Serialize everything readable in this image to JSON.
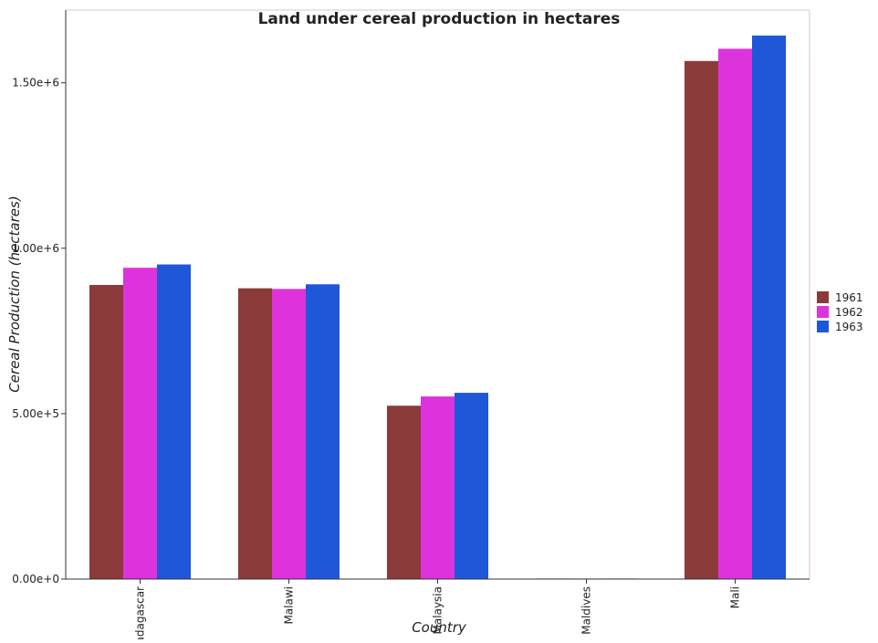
{
  "chart_data": {
    "type": "bar",
    "title": "Land under cereal production in hectares",
    "xlabel": "Country",
    "ylabel": "Cereal Production (hectares)",
    "categories": [
      "Madagascar",
      "Malawi",
      "Malaysia",
      "Maldives",
      "Mali"
    ],
    "series": [
      {
        "name": "1961",
        "color": "#8B3A3A",
        "values": [
          889000,
          879000,
          524000,
          300,
          1566000
        ]
      },
      {
        "name": "1962",
        "color": "#DD33DD",
        "values": [
          941000,
          877000,
          552000,
          300,
          1603000
        ]
      },
      {
        "name": "1963",
        "color": "#1F57D9",
        "values": [
          951000,
          891000,
          563000,
          300,
          1643000
        ]
      }
    ],
    "ylim": [
      0,
      1720000
    ],
    "yticks": [
      0,
      500000,
      1000000,
      1500000
    ],
    "ytick_labels": [
      "0.00e+0",
      "5.00e+5",
      "1.00e+6",
      "1.50e+6"
    ],
    "legend_position": "right",
    "grid": false
  }
}
